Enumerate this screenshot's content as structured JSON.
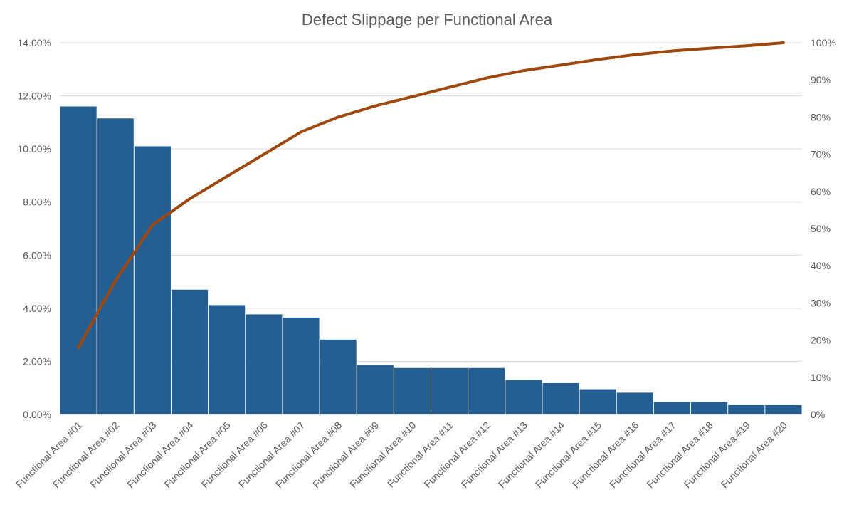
{
  "chart_data": {
    "type": "bar",
    "title": "Defect Slippage per Functional Area",
    "xlabel": "",
    "ylabel": "",
    "categories": [
      "Functional Area #01",
      "Functional Area #02",
      "Functional Area #03",
      "Functional Area #04",
      "Functional Area #05",
      "Functional Area #06",
      "Functional Area #07",
      "Functional Area #08",
      "Functional Area #09",
      "Functional Area #10",
      "Functional Area #11",
      "Functional Area #12",
      "Functional Area #13",
      "Functional Area #14",
      "Functional Area #15",
      "Functional Area #16",
      "Functional Area #17",
      "Functional Area #18",
      "Functional Area #19",
      "Functional Area #20"
    ],
    "series": [
      {
        "type": "bar",
        "axis": "left",
        "color": "#255E91",
        "values": [
          11.6,
          11.15,
          10.1,
          4.7,
          4.12,
          3.77,
          3.65,
          2.82,
          1.87,
          1.75,
          1.75,
          1.75,
          1.3,
          1.18,
          0.95,
          0.82,
          0.47,
          0.47,
          0.35,
          0.35
        ]
      },
      {
        "type": "line",
        "axis": "right",
        "color": "#9E480E",
        "values": [
          18,
          36,
          51,
          58,
          64,
          70,
          76,
          80,
          83,
          85.5,
          88,
          90.5,
          92.5,
          94,
          95.5,
          96.8,
          97.8,
          98.5,
          99.2,
          100
        ]
      }
    ],
    "ylim": [
      0,
      14
    ],
    "y_ticks": [
      "0.00%",
      "2.00%",
      "4.00%",
      "6.00%",
      "8.00%",
      "10.00%",
      "12.00%",
      "14.00%"
    ],
    "y_tick_values": [
      0,
      2,
      4,
      6,
      8,
      10,
      12,
      14
    ],
    "y2lim": [
      0,
      100
    ],
    "y2_ticks": [
      "0%",
      "10%",
      "20%",
      "30%",
      "40%",
      "50%",
      "60%",
      "70%",
      "80%",
      "90%",
      "100%"
    ],
    "y2_tick_values": [
      0,
      10,
      20,
      30,
      40,
      50,
      60,
      70,
      80,
      90,
      100
    ],
    "grid": true,
    "legend": "none",
    "colors": {
      "bar": "#255E91",
      "line": "#9E480E",
      "grid": "#D9D9D9",
      "text": "#595959"
    }
  }
}
